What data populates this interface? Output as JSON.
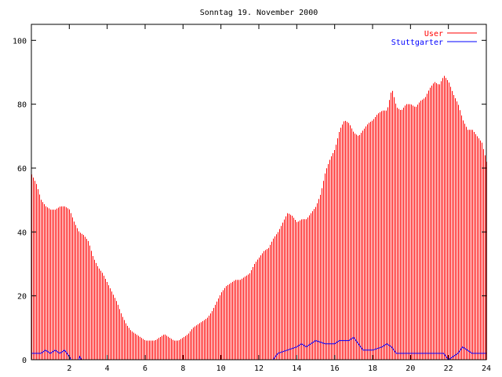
{
  "chart_data": {
    "type": "bar",
    "title": "Sonntag 19. November 2000",
    "xlabel": "",
    "ylabel": "",
    "xlim": [
      0,
      24
    ],
    "ylim": [
      0,
      105
    ],
    "xticks": [
      2,
      4,
      6,
      8,
      10,
      12,
      14,
      16,
      18,
      20,
      22,
      24
    ],
    "yticks": [
      0,
      20,
      40,
      60,
      80,
      100
    ],
    "legend_position": "top-right",
    "grid": false,
    "series": [
      {
        "name": "User",
        "type": "impulses",
        "color": "#ff0000",
        "points": [
          [
            0.0,
            58
          ],
          [
            0.25,
            55
          ],
          [
            0.5,
            50
          ],
          [
            0.75,
            48
          ],
          [
            1.0,
            47
          ],
          [
            1.25,
            47
          ],
          [
            1.5,
            48
          ],
          [
            1.75,
            48
          ],
          [
            2.0,
            47
          ],
          [
            2.25,
            43
          ],
          [
            2.5,
            40
          ],
          [
            2.75,
            39
          ],
          [
            3.0,
            37
          ],
          [
            3.25,
            32
          ],
          [
            3.5,
            29
          ],
          [
            3.75,
            27
          ],
          [
            4.0,
            24
          ],
          [
            4.25,
            21
          ],
          [
            4.5,
            18
          ],
          [
            4.75,
            14
          ],
          [
            5.0,
            11
          ],
          [
            5.25,
            9
          ],
          [
            5.5,
            8
          ],
          [
            5.75,
            7
          ],
          [
            6.0,
            6
          ],
          [
            6.25,
            6
          ],
          [
            6.5,
            6
          ],
          [
            6.75,
            7
          ],
          [
            7.0,
            8
          ],
          [
            7.25,
            7
          ],
          [
            7.5,
            6
          ],
          [
            7.75,
            6
          ],
          [
            8.0,
            7
          ],
          [
            8.25,
            8
          ],
          [
            8.5,
            10
          ],
          [
            8.75,
            11
          ],
          [
            9.0,
            12
          ],
          [
            9.25,
            13
          ],
          [
            9.5,
            15
          ],
          [
            9.75,
            18
          ],
          [
            10.0,
            21
          ],
          [
            10.25,
            23
          ],
          [
            10.5,
            24
          ],
          [
            10.75,
            25
          ],
          [
            11.0,
            25
          ],
          [
            11.25,
            26
          ],
          [
            11.5,
            27
          ],
          [
            11.75,
            30
          ],
          [
            12.0,
            32
          ],
          [
            12.25,
            34
          ],
          [
            12.5,
            35
          ],
          [
            12.75,
            38
          ],
          [
            13.0,
            40
          ],
          [
            13.25,
            43
          ],
          [
            13.5,
            46
          ],
          [
            13.75,
            45
          ],
          [
            14.0,
            43
          ],
          [
            14.25,
            44
          ],
          [
            14.5,
            44
          ],
          [
            14.75,
            46
          ],
          [
            15.0,
            48
          ],
          [
            15.25,
            52
          ],
          [
            15.5,
            59
          ],
          [
            15.75,
            63
          ],
          [
            16.0,
            66
          ],
          [
            16.25,
            72
          ],
          [
            16.5,
            75
          ],
          [
            16.75,
            74
          ],
          [
            17.0,
            71
          ],
          [
            17.25,
            70
          ],
          [
            17.5,
            72
          ],
          [
            17.75,
            74
          ],
          [
            18.0,
            75
          ],
          [
            18.25,
            77
          ],
          [
            18.5,
            78
          ],
          [
            18.75,
            78
          ],
          [
            19.0,
            85
          ],
          [
            19.25,
            79
          ],
          [
            19.5,
            78
          ],
          [
            19.75,
            80
          ],
          [
            20.0,
            80
          ],
          [
            20.25,
            79
          ],
          [
            20.5,
            81
          ],
          [
            20.75,
            82
          ],
          [
            21.0,
            85
          ],
          [
            21.25,
            87
          ],
          [
            21.5,
            86
          ],
          [
            21.75,
            89
          ],
          [
            22.0,
            87
          ],
          [
            22.25,
            83
          ],
          [
            22.5,
            80
          ],
          [
            22.75,
            75
          ],
          [
            23.0,
            72
          ],
          [
            23.25,
            72
          ],
          [
            23.5,
            70
          ],
          [
            23.75,
            68
          ],
          [
            24.0,
            62
          ]
        ]
      },
      {
        "name": "Stuttgarter",
        "type": "line",
        "color": "#0000ff",
        "points": [
          [
            0.0,
            2
          ],
          [
            0.5,
            2
          ],
          [
            0.75,
            3
          ],
          [
            1.0,
            2
          ],
          [
            1.25,
            3
          ],
          [
            1.5,
            2
          ],
          [
            1.75,
            3
          ],
          [
            2.0,
            1
          ],
          [
            2.1,
            0
          ],
          [
            2.5,
            0
          ],
          [
            2.55,
            1
          ],
          [
            2.65,
            0
          ],
          [
            12.75,
            0
          ],
          [
            13.0,
            2
          ],
          [
            13.5,
            3
          ],
          [
            14.0,
            4
          ],
          [
            14.25,
            5
          ],
          [
            14.5,
            4
          ],
          [
            15.0,
            6
          ],
          [
            15.5,
            5
          ],
          [
            16.0,
            5
          ],
          [
            16.25,
            6
          ],
          [
            16.75,
            6
          ],
          [
            17.0,
            7
          ],
          [
            17.25,
            5
          ],
          [
            17.5,
            3
          ],
          [
            18.0,
            3
          ],
          [
            18.5,
            4
          ],
          [
            18.75,
            5
          ],
          [
            19.0,
            4
          ],
          [
            19.25,
            2
          ],
          [
            21.75,
            2
          ],
          [
            22.0,
            0
          ],
          [
            22.25,
            1
          ],
          [
            22.5,
            2
          ],
          [
            22.75,
            4
          ],
          [
            23.0,
            3
          ],
          [
            23.25,
            2
          ],
          [
            24.0,
            2
          ]
        ]
      }
    ]
  }
}
